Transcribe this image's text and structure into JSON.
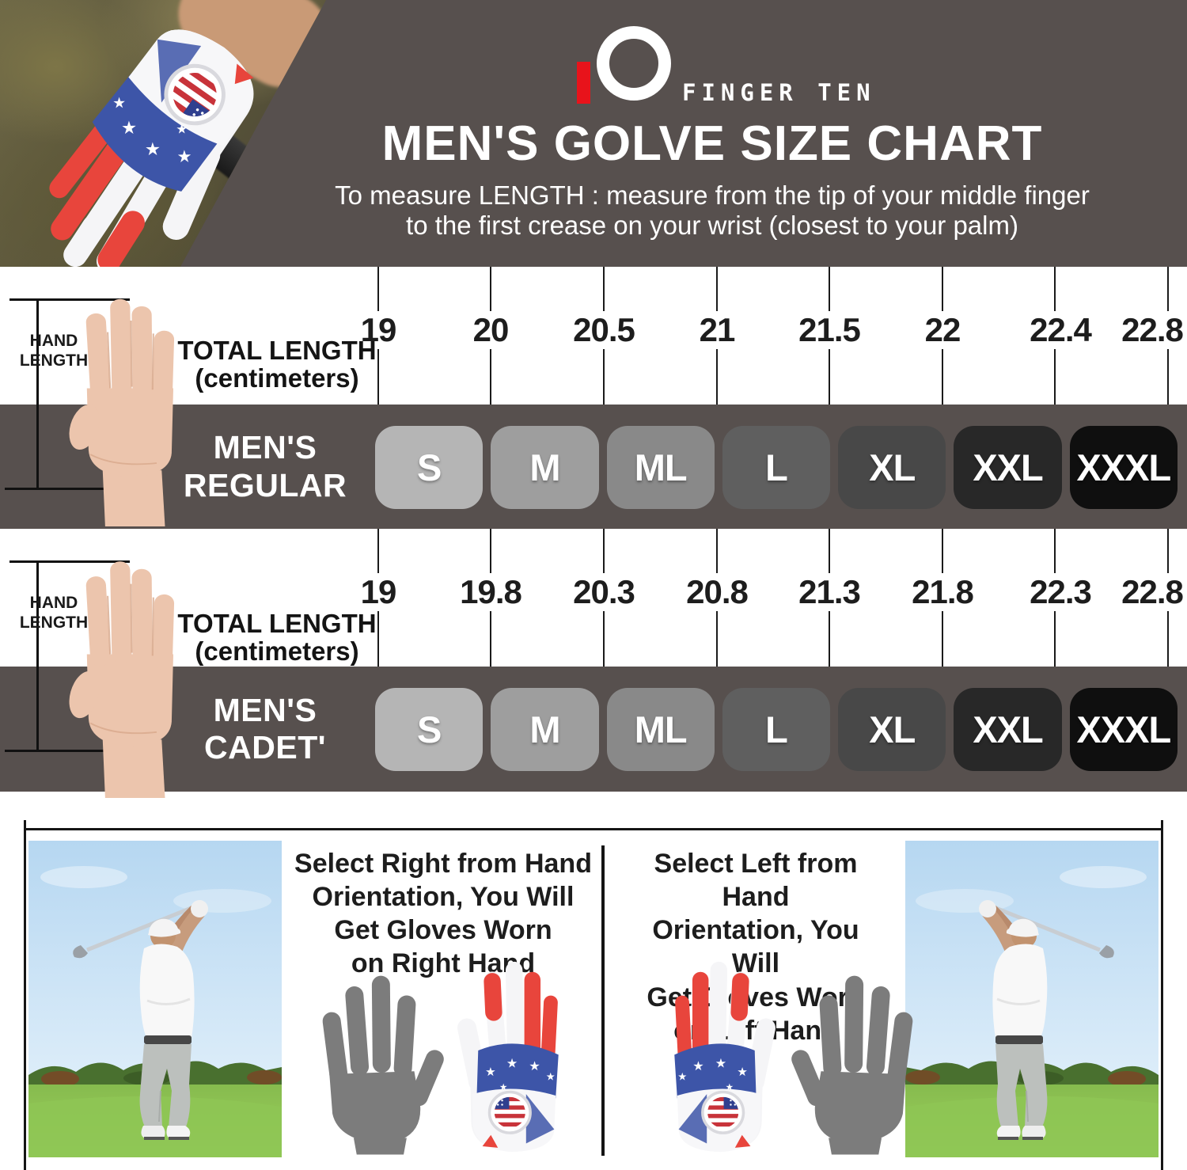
{
  "brand": {
    "logo_text": "FINGER TEN"
  },
  "header": {
    "title": "MEN'S GOLVE SIZE CHART",
    "subtitle_line1": "To measure LENGTH : measure from the tip of your middle finger",
    "subtitle_line2": "to the first crease on your wrist (closest to your palm)"
  },
  "charts": [
    {
      "name": "MEN'S REGULAR",
      "hand_label_line1": "HAND",
      "hand_label_line2": "LENGTH",
      "axis_label_line1": "TOTAL LENGTH",
      "axis_label_line2": "(centimeters)",
      "row_label_line1": "MEN'S",
      "row_label_line2": "REGULAR",
      "lengths_cm": [
        "19",
        "20",
        "20.5",
        "21",
        "21.5",
        "22",
        "22.4",
        "22.8"
      ],
      "sizes": [
        "S",
        "M",
        "ML",
        "L",
        "XL",
        "XXL",
        "XXXL"
      ]
    },
    {
      "name": "MEN'S CADET'",
      "hand_label_line1": "HAND",
      "hand_label_line2": "LENGTH",
      "axis_label_line1": "TOTAL LENGTH",
      "axis_label_line2": "(centimeters)",
      "row_label_line1": "MEN'S",
      "row_label_line2": "CADET'",
      "lengths_cm": [
        "19",
        "19.8",
        "20.3",
        "20.8",
        "21.3",
        "21.8",
        "22.3",
        "22.8"
      ],
      "sizes": [
        "S",
        "M",
        "ML",
        "L",
        "XL",
        "XXL",
        "XXXL"
      ]
    }
  ],
  "size_box_colors": [
    "#b5b5b5",
    "#9e9e9e",
    "#898989",
    "#5f5f5f",
    "#484848",
    "#282828",
    "#0f0f0f"
  ],
  "footer": {
    "right_lines": [
      "Select Right from Hand",
      "Orientation, You Will",
      "Get Gloves Worn",
      "on Right Hand"
    ],
    "left_lines": [
      "Select Left from Hand",
      "Orientation, You Will",
      "Get Gloves Worn",
      "on Left Hand"
    ]
  },
  "colors": {
    "band_background": "#57504e",
    "accent_red": "#e8131b"
  },
  "chart_data": {
    "type": "table",
    "title": "MEN'S GOLVE SIZE CHART",
    "unit": "centimeters",
    "measure": "TOTAL LENGTH",
    "series": [
      {
        "name": "MEN'S REGULAR",
        "total_length_cm_ticks": [
          19,
          20,
          20.5,
          21,
          21.5,
          22,
          22.4,
          22.8
        ],
        "sizes": [
          "S",
          "M",
          "ML",
          "L",
          "XL",
          "XXL",
          "XXXL"
        ]
      },
      {
        "name": "MEN'S CADET'",
        "total_length_cm_ticks": [
          19,
          19.8,
          20.3,
          20.8,
          21.3,
          21.8,
          22.3,
          22.8
        ],
        "sizes": [
          "S",
          "M",
          "ML",
          "L",
          "XL",
          "XXL",
          "XXXL"
        ]
      }
    ]
  }
}
